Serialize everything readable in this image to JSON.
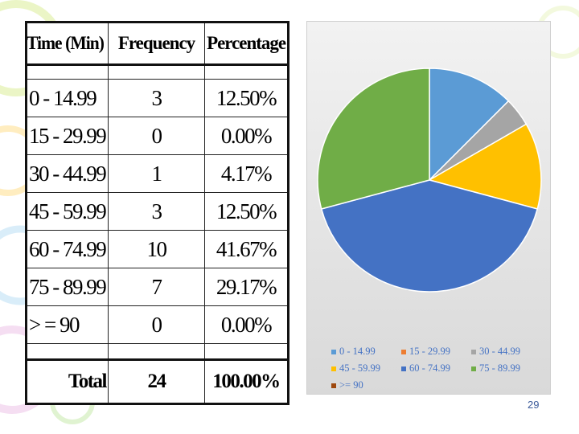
{
  "table": {
    "headers": [
      "Time (Min)",
      "Frequency",
      "Percentage"
    ],
    "rows": [
      [
        "0 - 14.99",
        "3",
        "12.50%"
      ],
      [
        "15 - 29.99",
        "0",
        "0.00%"
      ],
      [
        "30 - 44.99",
        "1",
        "4.17%"
      ],
      [
        "45 - 59.99",
        "3",
        "12.50%"
      ],
      [
        "60 - 74.99",
        "10",
        "41.67%"
      ],
      [
        "75 - 89.99",
        "7",
        "29.17%"
      ],
      [
        "> = 90",
        "0",
        "0.00%"
      ]
    ],
    "total": [
      "Total",
      "24",
      "100.00%"
    ]
  },
  "chart_data": {
    "type": "pie",
    "categories": [
      "0 - 14.99",
      "15 - 29.99",
      "30 - 44.99",
      "45 - 59.99",
      "60 - 74.99",
      "75 - 89.99",
      ">= 90"
    ],
    "values": [
      3,
      0,
      1,
      3,
      10,
      7,
      0
    ],
    "colors": [
      "#5b9bd5",
      "#ed7d31",
      "#a5a5a5",
      "#ffc000",
      "#4472c4",
      "#70ad47",
      "#9e480e"
    ],
    "legend_position": "bottom",
    "title": ""
  },
  "page_number": "29"
}
